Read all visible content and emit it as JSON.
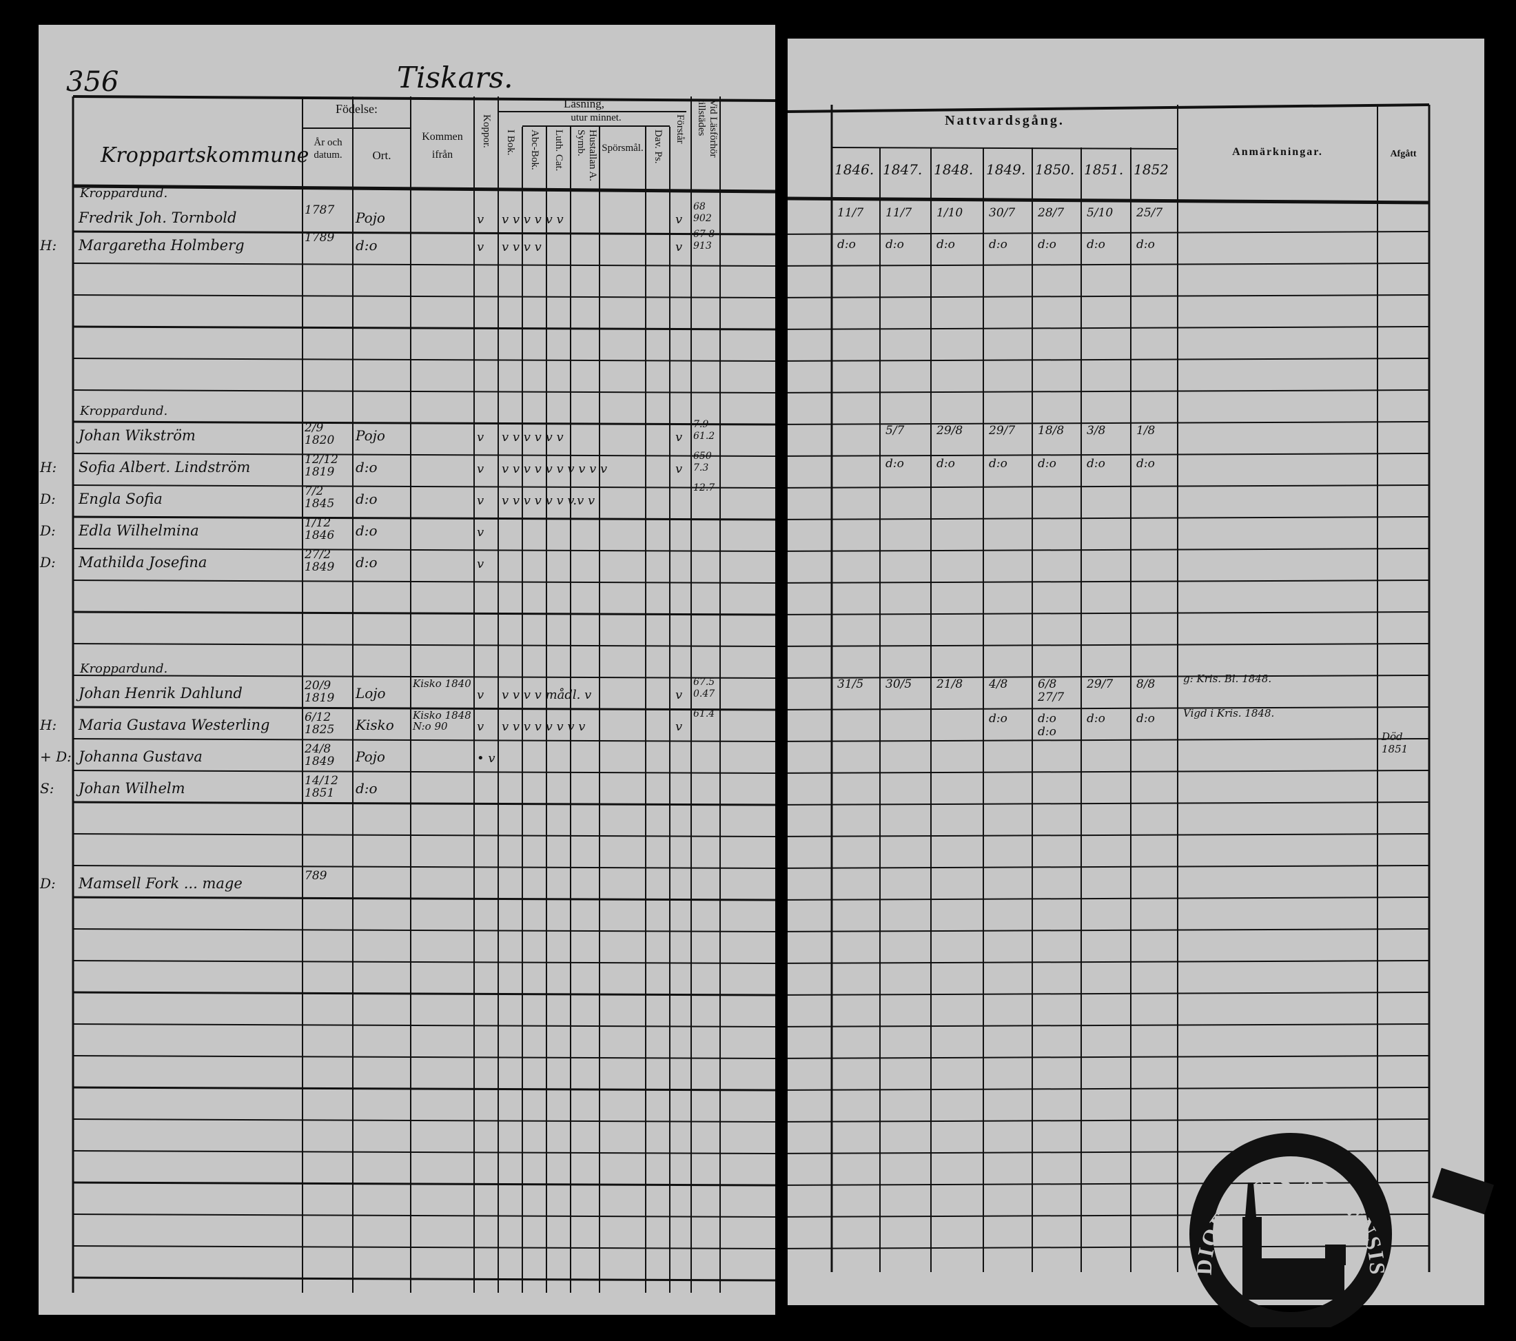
{
  "left_page": {
    "page_number": "356",
    "village_title": "Tiskars.",
    "headers": {
      "name_column": "Kroppartskommune",
      "fodelse": "Födelse:",
      "ar_och_datum": "År och datum.",
      "ort": "Ort.",
      "kommen_ifran": "Kommen ifrån",
      "koppor": "Koppor.",
      "lasning": "Läsning,",
      "utur_minnet": "utur minnet.",
      "i_bok": "I Bok.",
      "abc_bok": "Abc-Bok.",
      "luth_cat": "Luth. Cat.",
      "hustallan": "Hustallan A. Symb.",
      "sporsmal": "Spörsmål.",
      "dav_ps": "Dav. Ps.",
      "forstar": "Förstår",
      "vid_lasforhor": "Vid Läsförhör tillstädes"
    },
    "entries": [
      {
        "group": "Kroppardund.",
        "prefix": "",
        "name": "Fredrik Joh. Tornbold",
        "birth": "1787",
        "place": "Pojo",
        "from": "",
        "koppor": "v",
        "reading": "v  v  v  v  v  v",
        "forstar": "v",
        "attended": "68 902"
      },
      {
        "prefix": "H:",
        "name": "Margaretha Holmberg",
        "birth": "1789",
        "place": "d:o",
        "from": "",
        "koppor": "v",
        "reading": "v  v  v  v",
        "forstar": "v",
        "attended": "67 8 913"
      },
      {
        "group": "Kroppardund.",
        "prefix": "",
        "name": "Johan Wikström",
        "birth": "2/9 1820",
        "place": "Pojo",
        "from": "",
        "koppor": "v",
        "reading": "v  v  v  v  v  v",
        "forstar": "v",
        "attended": "7.9 61.2"
      },
      {
        "prefix": "H:",
        "name": "Sofia Albert. Lindström",
        "birth": "12/12 1819",
        "place": "d:o",
        "from": "",
        "koppor": "v",
        "reading": "v  v  v  v  v v  v v v v",
        "forstar": "v",
        "attended": "650 7.3"
      },
      {
        "prefix": "D:",
        "name": "Engla Sofia",
        "birth": "7/2 1845",
        "place": "d:o",
        "from": "",
        "koppor": "v",
        "reading": "v  v  v  v  v v v.v v",
        "forstar": "",
        "attended": "12.7"
      },
      {
        "prefix": "D:",
        "name": "Edla Wilhelmina",
        "birth": "1/12 1846",
        "place": "d:o",
        "from": "",
        "koppor": "v",
        "reading": "",
        "forstar": "",
        "attended": ""
      },
      {
        "prefix": "D:",
        "name": "Mathilda Josefina",
        "birth": "27/2 1849",
        "place": "d:o",
        "from": "",
        "koppor": "v",
        "reading": "",
        "forstar": "",
        "attended": ""
      },
      {
        "group": "Kroppardund.",
        "prefix": "",
        "name": "Johan Henrik Dahlund",
        "birth": "20/9 1819",
        "place": "Lojo",
        "from": "Kisko 1840",
        "koppor": "v",
        "reading": "v  v  v  v      mådl. v",
        "forstar": "v",
        "attended": "67.5 0.47"
      },
      {
        "prefix": "H:",
        "name": "Maria Gustava Westerling",
        "birth": "6/12 1825",
        "place": "Kisko",
        "from": "Kisko 1848 N:o 90",
        "koppor": "v",
        "reading": "v  v  v  v v  v  v  v",
        "forstar": "v",
        "attended": "61.4"
      },
      {
        "prefix": "+ D:",
        "name": "Johanna Gustava",
        "birth": "24/8 1849",
        "place": "Pojo",
        "from": "",
        "koppor": "• v",
        "reading": "",
        "forstar": "",
        "attended": ""
      },
      {
        "prefix": "S:",
        "name": "Johan Wilhelm",
        "birth": "14/12 1851",
        "place": "d:o",
        "from": "",
        "koppor": "",
        "reading": "",
        "forstar": "",
        "attended": ""
      },
      {
        "prefix": "D:",
        "name": "Mamsell Fork ... mage",
        "birth": "789",
        "place": "",
        "from": "",
        "koppor": "",
        "reading": "",
        "forstar": "",
        "attended": ""
      }
    ]
  },
  "right_page": {
    "headers": {
      "nattvardsgang": "Nattvardsgång.",
      "years": [
        "1846.",
        "1847.",
        "1848.",
        "1849.",
        "1850.",
        "1851.",
        "1852"
      ],
      "anmarkningar": "Anmärkningar.",
      "afgatt": "Afgått"
    },
    "rows": [
      {
        "dates": [
          "11/7",
          "11/7",
          "1/10",
          "30/7",
          "28/7",
          "5/10",
          "25/7"
        ],
        "remark": "",
        "afgatt": ""
      },
      {
        "dates": [
          "d:o",
          "d:o",
          "d:o",
          "d:o",
          "d:o",
          "d:o",
          "d:o"
        ],
        "remark": "",
        "afgatt": ""
      },
      {
        "dates": [
          "",
          "5/7",
          "29/8",
          "29/7",
          "18/8",
          "3/8",
          "1/8"
        ],
        "remark": "",
        "afgatt": ""
      },
      {
        "dates": [
          "",
          "d:o",
          "d:o",
          "d:o",
          "d:o",
          "d:o",
          "d:o"
        ],
        "remark": "",
        "afgatt": ""
      },
      {
        "dates": [
          "31/5",
          "30/5",
          "21/8",
          "4/8",
          "6/8 27/7",
          "29/7",
          "8/8"
        ],
        "remark": "g: Kris. Bl. 1848.",
        "afgatt": ""
      },
      {
        "dates": [
          "",
          "",
          "",
          "d:o",
          "d:o d:o",
          "d:o",
          "d:o"
        ],
        "remark": "Vigd i Kris. 1848.",
        "afgatt": ""
      },
      {
        "dates": [
          "",
          "",
          "",
          "",
          "",
          "",
          ""
        ],
        "remark": "",
        "afgatt": "Död 1851"
      }
    ]
  },
  "stamp": {
    "text": "DIOECESIS ABOENSIS"
  },
  "colors": {
    "paper": "#c6c6c6",
    "ink": "#111111",
    "background": "#000000"
  }
}
